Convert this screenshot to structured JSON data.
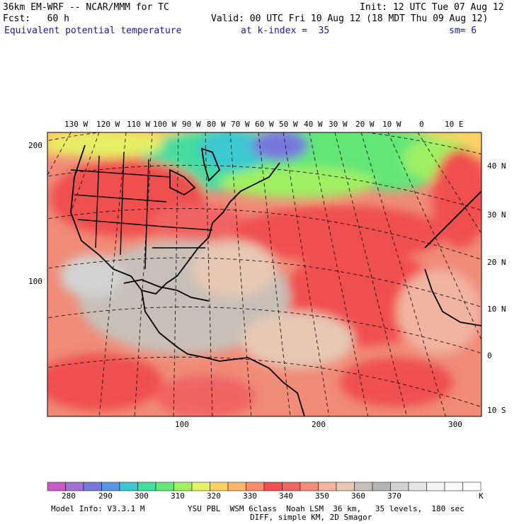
{
  "header": {
    "model": "36km EM-WRF -- NCAR/MMM for TC",
    "init": "Init: 12 UTC Tue 07 Aug 12",
    "fcst": "Fcst:   60 h",
    "valid": "Valid: 00 UTC Fri 10 Aug 12 (18 MDT Thu 09 Aug 12)",
    "field": "Equivalent potential temperature",
    "kindex": "at k-index =  35",
    "sm": "sm= 6"
  },
  "map": {
    "top_lon_labels": [
      "130 W",
      "120 W",
      "110 W",
      "100 W",
      "90 W",
      "80 W",
      "70 W",
      "60 W",
      "50 W",
      "40 W",
      "30 W",
      "20 W",
      "10 W",
      "0",
      "10 E"
    ],
    "right_lat_labels": [
      "40 N",
      "30 N",
      "20 N",
      "10 N",
      "0",
      "10 S"
    ],
    "left_grid_labels": [
      "200",
      "100"
    ],
    "bottom_grid_labels": [
      "100",
      "200",
      "300"
    ]
  },
  "colorbar": {
    "colors": [
      "#c85ac8",
      "#a070d2",
      "#7878dc",
      "#5a96e6",
      "#3cc8d2",
      "#46dca0",
      "#64e678",
      "#a0f064",
      "#e6f064",
      "#fad264",
      "#fab46e",
      "#fa8c6e",
      "#f05050",
      "#f06464",
      "#f08c78",
      "#f0b4a0",
      "#e6c8b4",
      "#c8c0b8",
      "#b4b4b4",
      "#d2d2d2",
      "#e6e6e6",
      "#f4f4f4",
      "#fafafa",
      "#ffffff"
    ],
    "labels": [
      "280",
      "290",
      "300",
      "310",
      "320",
      "330",
      "340",
      "350",
      "360",
      "370"
    ],
    "unit": "K"
  },
  "footer": {
    "line1_left": "Model Info: V3.3.1 M",
    "line1_right": "YSU PBL  WSM 6class  Noah LSM  36 km,   35 levels,  180 sec",
    "line2": "DIFF, simple KM, 2D Smagor"
  }
}
